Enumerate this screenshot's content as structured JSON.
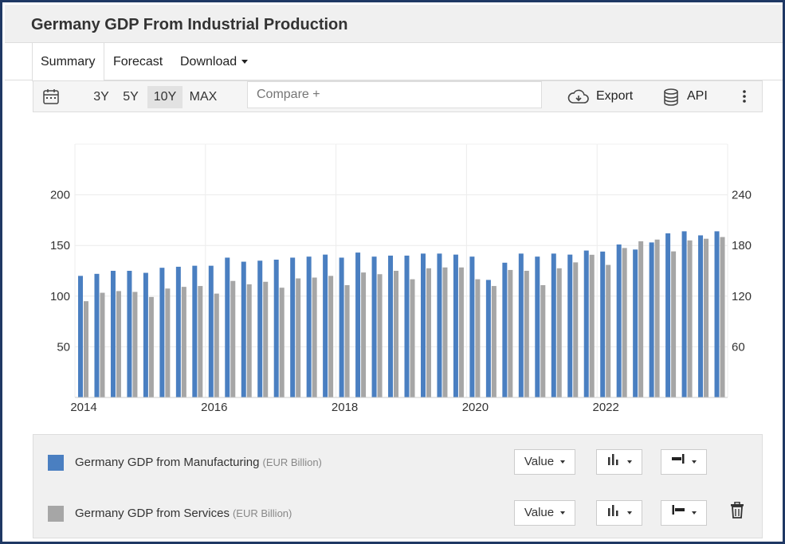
{
  "header": {
    "title": "Germany GDP From Industrial Production"
  },
  "tabs": [
    {
      "label": "Summary"
    },
    {
      "label": "Forecast"
    },
    {
      "label": "Download"
    }
  ],
  "toolbar": {
    "ranges": [
      "3Y",
      "5Y",
      "10Y",
      "MAX"
    ],
    "active_range": "10Y",
    "compare_placeholder": "Compare +",
    "export_label": "Export",
    "api_label": "API"
  },
  "legend": [
    {
      "name": "Germany GDP from Manufacturing",
      "unit": "(EUR Billion)",
      "color": "#4a7fc1",
      "value_select": "Value"
    },
    {
      "name": "Germany GDP from Services",
      "unit": "(EUR Billion)",
      "color": "#a6a6a6",
      "value_select": "Value"
    }
  ],
  "chart_data": {
    "type": "bar",
    "x_tick_labels": [
      "2014",
      "2016",
      "2018",
      "2020",
      "2022"
    ],
    "left_axis": {
      "ticks": [
        50,
        100,
        150,
        200
      ],
      "ylim": [
        0,
        250
      ]
    },
    "right_axis": {
      "ticks": [
        60,
        120,
        180,
        240
      ],
      "ylim": [
        0,
        300
      ]
    },
    "grid": true,
    "series": [
      {
        "name": "Germany GDP from Manufacturing",
        "axis": "left",
        "color": "#4a7fc1",
        "values": [
          120,
          122,
          125,
          125,
          123,
          128,
          129,
          130,
          130,
          138,
          134,
          135,
          136,
          138,
          139,
          141,
          138,
          143,
          139,
          140,
          140,
          142,
          142,
          141,
          139,
          116,
          133,
          142,
          139,
          142,
          141,
          145,
          144,
          151,
          146,
          153,
          162,
          164,
          160,
          164
        ]
      },
      {
        "name": "Germany GDP from Services",
        "axis": "right",
        "color": "#a6a6a6",
        "values": [
          114,
          124,
          126,
          125,
          119,
          129,
          131,
          132,
          123,
          138,
          134,
          137,
          130,
          141,
          142,
          144,
          133,
          148,
          146,
          150,
          140,
          153,
          154,
          154,
          140,
          132,
          151,
          150,
          133,
          153,
          160,
          169,
          157,
          177,
          185,
          187,
          173,
          186,
          188,
          190
        ]
      }
    ]
  }
}
